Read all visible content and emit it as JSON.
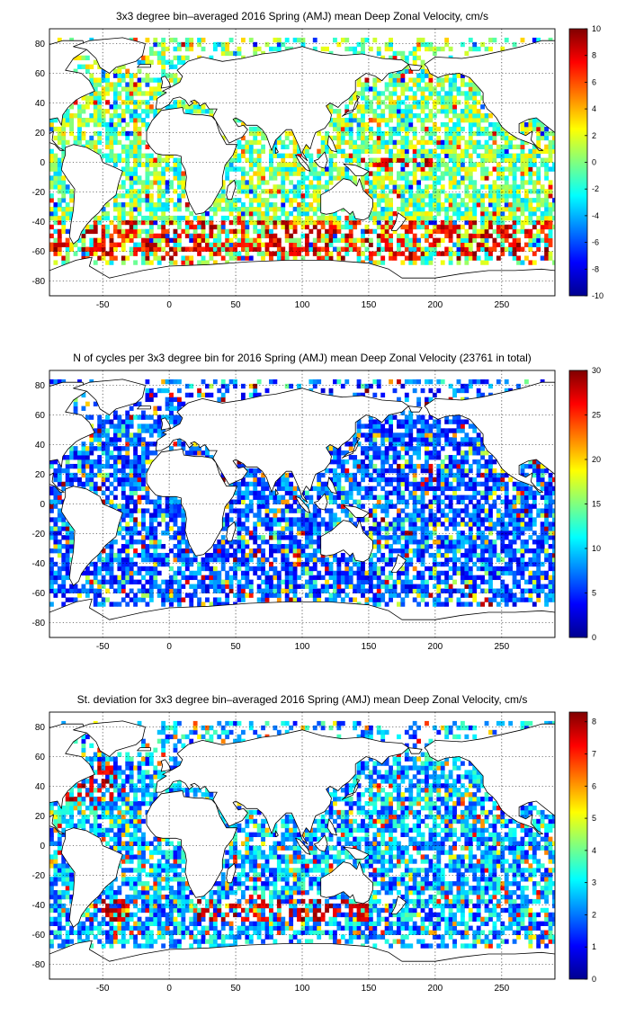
{
  "panels": [
    {
      "title": "3x3 degree bin–averaged 2016 Spring (AMJ) mean Deep Zonal Velocity, cm/s",
      "xticks": [
        "-50",
        "0",
        "50",
        "100",
        "150",
        "200",
        "250"
      ],
      "yticks": [
        "80",
        "60",
        "40",
        "20",
        "0",
        "-20",
        "-40",
        "-60",
        "-80"
      ],
      "colorbar_ticks": [
        "10",
        "8",
        "6",
        "4",
        "2",
        "0",
        "-2",
        "-4",
        "-6",
        "-8",
        "-10"
      ]
    },
    {
      "title": "N of cycles per 3x3 degree bin for 2016 Spring (AMJ) mean Deep Zonal Velocity (23761 in total)",
      "xticks": [
        "-50",
        "0",
        "50",
        "100",
        "150",
        "200",
        "250"
      ],
      "yticks": [
        "80",
        "60",
        "40",
        "20",
        "0",
        "-20",
        "-40",
        "-60",
        "-80"
      ],
      "colorbar_ticks": [
        "30",
        "25",
        "20",
        "15",
        "10",
        "5",
        "0"
      ]
    },
    {
      "title": "St. deviation for 3x3 degree bin–averaged 2016 Spring (AMJ) mean Deep Zonal Velocity, cm/s",
      "xticks": [
        "-50",
        "0",
        "50",
        "100",
        "150",
        "200",
        "250"
      ],
      "yticks": [
        "80",
        "60",
        "40",
        "20",
        "0",
        "-20",
        "-40",
        "-60",
        "-80"
      ],
      "colorbar_ticks": [
        "8",
        "7",
        "6",
        "5",
        "4",
        "3",
        "2",
        "1",
        "0"
      ]
    }
  ],
  "map_extent": {
    "lon": [
      -90,
      290
    ],
    "lat": [
      -90,
      90
    ]
  },
  "colorbar_ranges": [
    [
      -10,
      10
    ],
    [
      0,
      30
    ],
    [
      0,
      8.3
    ]
  ],
  "colormap": "jet",
  "colors": {
    "coastline": "#000000",
    "land": "#ffffff",
    "grid": "#000000"
  }
}
